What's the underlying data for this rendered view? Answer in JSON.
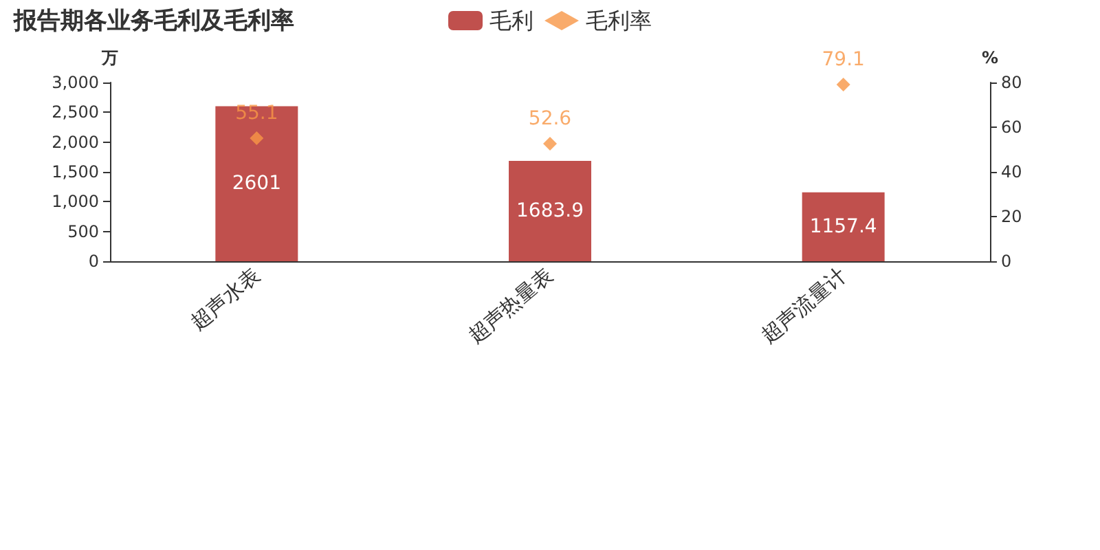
{
  "chart_data": {
    "type": "bar",
    "title": "报告期各业务毛利及毛利率",
    "ylabel": "万",
    "y2label": "%",
    "categories": [
      "超声水表",
      "超声热量表",
      "超声流量计"
    ],
    "series": [
      {
        "name": "毛利",
        "type": "bar",
        "color": "#c0504d",
        "values": [
          2601,
          1683.9,
          1157.4
        ]
      },
      {
        "name": "毛利率",
        "type": "scatter",
        "axis": "y2",
        "color": "#f79646",
        "values": [
          55.1,
          52.6,
          79.1
        ]
      }
    ],
    "ylim": [
      0,
      3000
    ],
    "yticks": [
      {
        "value": 0,
        "label": "0"
      },
      {
        "value": 500,
        "label": "500"
      },
      {
        "value": 1000,
        "label": "1,000"
      },
      {
        "value": 1500,
        "label": "1,500"
      },
      {
        "value": 2000,
        "label": "2,000"
      },
      {
        "value": 2500,
        "label": "2,500"
      },
      {
        "value": 3000,
        "label": "3,000"
      }
    ],
    "y2lim": [
      0,
      80
    ],
    "y2ticks": [
      0,
      20,
      40,
      60,
      80
    ],
    "marker": "diamond",
    "data_labels": true,
    "grid": false,
    "legend": "top"
  }
}
